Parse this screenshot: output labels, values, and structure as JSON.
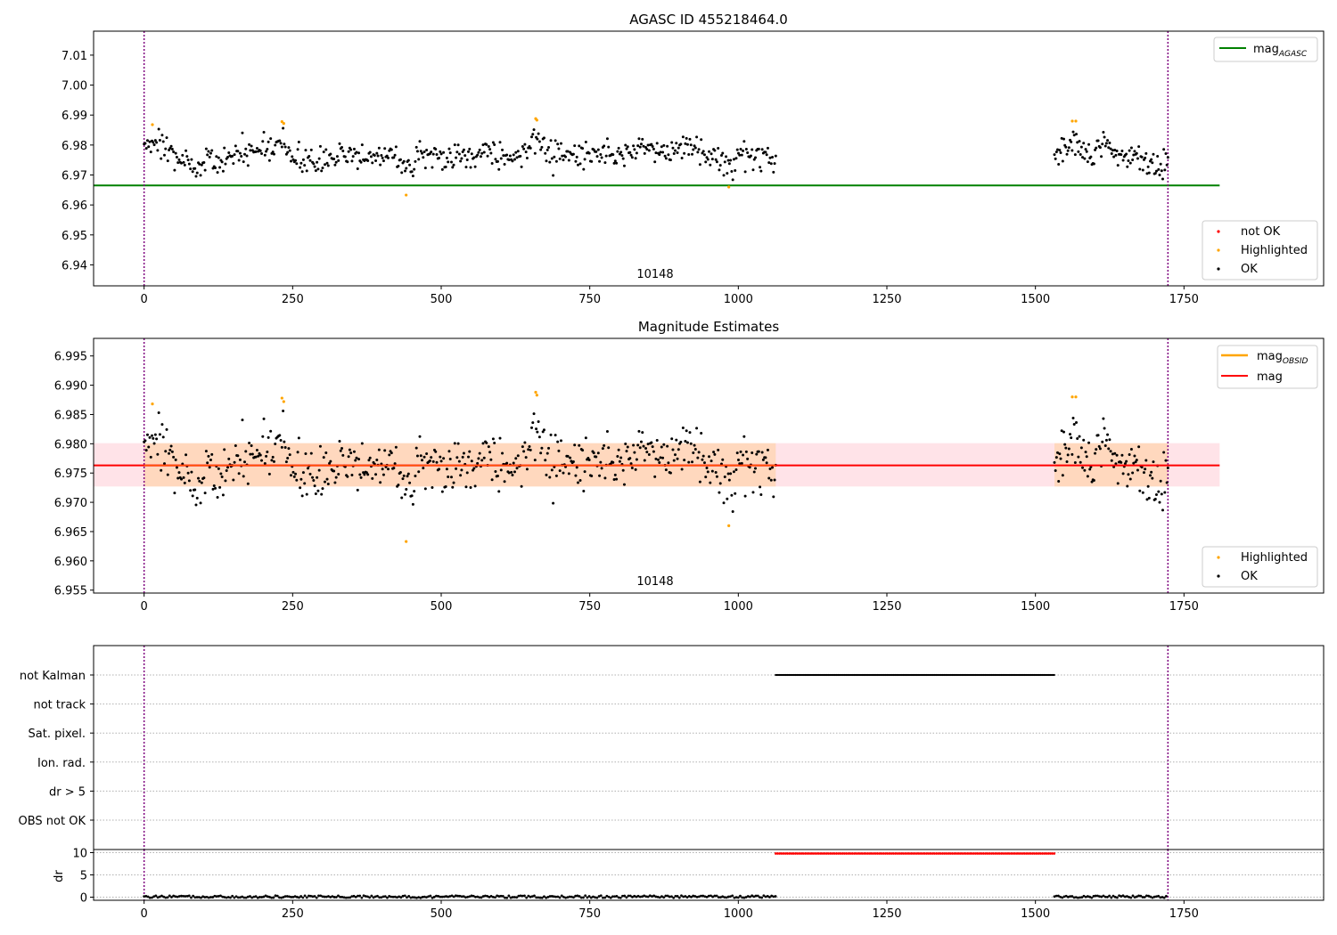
{
  "chart_data": [
    {
      "type": "scatter",
      "title": "AGASC ID 455218464.0",
      "xlim": [
        -85,
        1985
      ],
      "ylim": [
        6.933,
        7.018
      ],
      "xticks": [
        0,
        250,
        500,
        750,
        1000,
        1250,
        1500,
        1750
      ],
      "yticks": [
        6.94,
        6.95,
        6.96,
        6.97,
        6.98,
        6.99,
        7.0,
        7.01
      ],
      "ytick_labels": [
        "6.94",
        "6.95",
        "6.96",
        "6.97",
        "6.98",
        "6.99",
        "7.00",
        "7.01"
      ],
      "obsid_label": "10148",
      "obsid_label_x": 860,
      "vlines_x": [
        0,
        1723
      ],
      "hline": {
        "label_main": "mag",
        "label_sub": "AGASC",
        "y": 6.9665,
        "x_range": [
          -85,
          1810
        ],
        "color": "#008000"
      },
      "legend_upper": {
        "position": "upper right"
      },
      "legend_lower": {
        "position": "lower right",
        "entries": [
          {
            "label": "not OK",
            "color": "#ff0000"
          },
          {
            "label": "Highlighted",
            "color": "#ffa500"
          },
          {
            "label": "OK",
            "color": "#000000"
          }
        ]
      },
      "segments": [
        {
          "x_range": [
            0,
            1063
          ],
          "n": 560
        },
        {
          "x_range": [
            1532,
            1723
          ],
          "n": 110
        }
      ],
      "level": 6.9763,
      "spread": 0.0036,
      "bumps": [
        {
          "x": 15,
          "dy": 0.0055,
          "w": 20
        },
        {
          "x": 90,
          "dy": -0.004,
          "w": 25
        },
        {
          "x": 200,
          "dy": 0.004,
          "w": 20
        },
        {
          "x": 230,
          "dy": 0.005,
          "w": 10
        },
        {
          "x": 280,
          "dy": -0.002,
          "w": 30
        },
        {
          "x": 440,
          "dy": -0.003,
          "w": 15
        },
        {
          "x": 660,
          "dy": 0.006,
          "w": 15
        },
        {
          "x": 840,
          "dy": 0.004,
          "w": 20
        },
        {
          "x": 905,
          "dy": 0.004,
          "w": 25
        },
        {
          "x": 985,
          "dy": -0.005,
          "w": 10
        },
        {
          "x": 1565,
          "dy": 0.004,
          "w": 15
        },
        {
          "x": 1615,
          "dy": 0.004,
          "w": 15
        },
        {
          "x": 1700,
          "dy": -0.004,
          "w": 20
        }
      ],
      "highlighted_points": [
        {
          "x": 14,
          "y": 6.9868
        },
        {
          "x": 232,
          "y": 6.9878
        },
        {
          "x": 235,
          "y": 6.9872
        },
        {
          "x": 441,
          "y": 6.9633
        },
        {
          "x": 659,
          "y": 6.9888
        },
        {
          "x": 661,
          "y": 6.9883
        },
        {
          "x": 984,
          "y": 6.966
        },
        {
          "x": 1562,
          "y": 6.988
        },
        {
          "x": 1568,
          "y": 6.988
        }
      ]
    },
    {
      "type": "scatter",
      "title": "Magnitude Estimates",
      "xlim": [
        -85,
        1985
      ],
      "ylim": [
        6.9545,
        6.998
      ],
      "xticks": [
        0,
        250,
        500,
        750,
        1000,
        1250,
        1500,
        1750
      ],
      "yticks": [
        6.955,
        6.96,
        6.965,
        6.97,
        6.975,
        6.98,
        6.985,
        6.99,
        6.995
      ],
      "ytick_labels": [
        "6.955",
        "6.960",
        "6.965",
        "6.970",
        "6.975",
        "6.980",
        "6.985",
        "6.990",
        "6.995"
      ],
      "obsid_label": "10148",
      "obsid_label_x": 860,
      "vlines_x": [
        0,
        1723
      ],
      "band": {
        "y_low": 6.9727,
        "y_high": 6.9801,
        "x_range": [
          -85,
          1810
        ],
        "obsid_band": {
          "x_range": [
            0,
            1063
          ],
          "y_low": 6.9727,
          "y_high": 6.9801
        }
      },
      "mag_line": {
        "y": 6.9763,
        "x_range": [
          -85,
          1810
        ],
        "color": "#ff0000"
      },
      "obsid_line": {
        "y": 6.9763,
        "x_range": [
          0,
          1063
        ],
        "color": "#ffa500"
      },
      "legend_upper": {
        "position": "upper right",
        "entries": [
          {
            "label_main": "mag",
            "label_sub": "OBSID",
            "color": "#ffa500"
          },
          {
            "label_main": "mag",
            "label_sub": "",
            "color": "#ff0000"
          }
        ]
      },
      "legend_lower": {
        "position": "lower right",
        "entries": [
          {
            "label": "Highlighted",
            "color": "#ffa500"
          },
          {
            "label": "OK",
            "color": "#000000"
          }
        ]
      },
      "highlighted_points": [
        {
          "x": 14,
          "y": 6.9868
        },
        {
          "x": 232,
          "y": 6.9878
        },
        {
          "x": 235,
          "y": 6.9872
        },
        {
          "x": 441,
          "y": 6.9633
        },
        {
          "x": 659,
          "y": 6.9888
        },
        {
          "x": 661,
          "y": 6.9883
        },
        {
          "x": 984,
          "y": 6.966
        },
        {
          "x": 1562,
          "y": 6.988
        },
        {
          "x": 1568,
          "y": 6.988
        }
      ]
    },
    {
      "type": "scatter",
      "title": "",
      "xlim": [
        -85,
        1985
      ],
      "xticks": [
        0,
        250,
        500,
        750,
        1000,
        1250,
        1500,
        1750
      ],
      "flag_rows": [
        "not Kalman",
        "not track",
        "Sat. pixel.",
        "Ion. rad.",
        "dr > 5",
        "OBS not OK"
      ],
      "flag_segments": [
        {
          "row": "not Kalman",
          "x_range": [
            1063,
            1532
          ]
        }
      ],
      "vlines_x": [
        0,
        1723
      ]
    },
    {
      "type": "scatter",
      "title": "",
      "ylabel": "dr",
      "xlim": [
        -85,
        1985
      ],
      "ylim": [
        -0.7,
        10.7
      ],
      "xticks": [
        0,
        250,
        500,
        750,
        1000,
        1250,
        1500,
        1750
      ],
      "yticks": [
        0,
        5,
        10
      ],
      "ytick_labels": [
        "0",
        "5",
        "10"
      ],
      "dr_segments": [
        {
          "x_range": [
            0,
            1063
          ],
          "y": 0.1,
          "color": "#000000"
        },
        {
          "x_range": [
            1063,
            1532
          ],
          "y": 9.8,
          "color": "#ff0000"
        },
        {
          "x_range": [
            1532,
            1723
          ],
          "y": 0.1,
          "color": "#000000"
        }
      ],
      "vlines_x": [
        0,
        1723
      ]
    }
  ]
}
